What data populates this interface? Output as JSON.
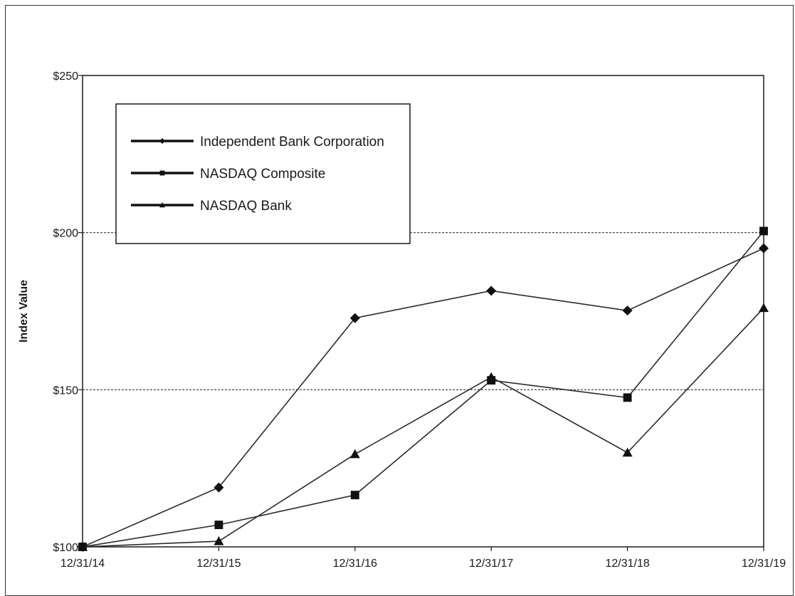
{
  "chart_data": {
    "type": "line",
    "title": "",
    "xlabel": "",
    "ylabel": "Index Value",
    "categories": [
      "12/31/14",
      "12/31/15",
      "12/31/16",
      "12/31/17",
      "12/31/18",
      "12/31/19"
    ],
    "ylim": [
      100,
      250
    ],
    "yticks": [
      {
        "value": 100,
        "label": "$100"
      },
      {
        "value": 150,
        "label": "$150"
      },
      {
        "value": 200,
        "label": "$200"
      },
      {
        "value": 250,
        "label": "$250"
      }
    ],
    "gridlines": [
      150,
      200
    ],
    "legend_position": "top-left",
    "series": [
      {
        "name": "Independent Bank Corporation",
        "marker": "diamond",
        "values": [
          100,
          118.9,
          172.8,
          181.5,
          175.2,
          195.0
        ]
      },
      {
        "name": "NASDAQ Composite",
        "marker": "square",
        "values": [
          100,
          107.0,
          116.5,
          153.0,
          147.5,
          200.5
        ]
      },
      {
        "name": "NASDAQ Bank",
        "marker": "triangle",
        "values": [
          100,
          101.8,
          129.5,
          154.0,
          130.0,
          176.0
        ]
      }
    ],
    "colors": {
      "line": "#2a2a2a",
      "grid": "#333333",
      "axis": "#1a1a1a"
    }
  }
}
